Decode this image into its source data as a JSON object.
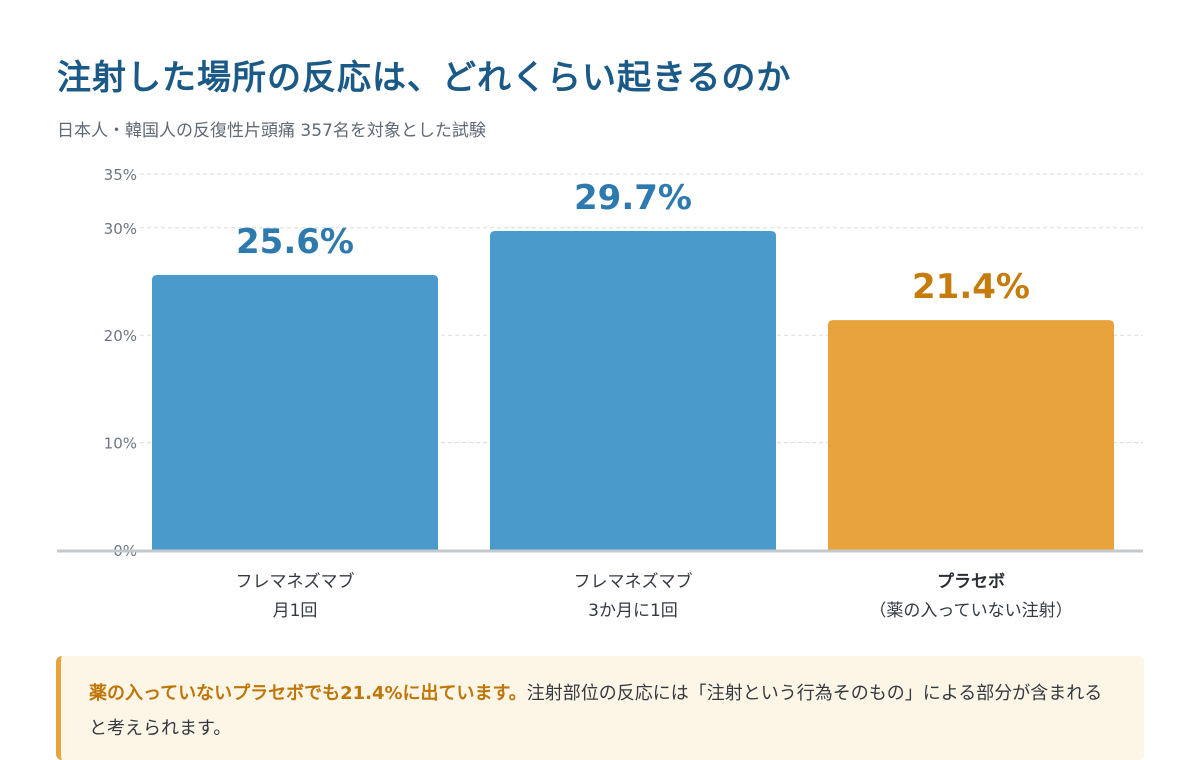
{
  "header": {
    "title": "注射した場所の反応は、どれくらい起きるのか",
    "subtitle": "日本人・韓国人の反復性片頭痛 357名を対象とした試験"
  },
  "colors": {
    "title": "#1b5a86",
    "drug_bar": "#4a9bcb",
    "drug_label": "#2e79ad",
    "placebo_bar": "#e9a33c",
    "placebo_label": "#c57c0c",
    "callout_bg": "#fdf6e7",
    "callout_border": "#e9a33c"
  },
  "chart_data": {
    "type": "bar",
    "ylim": [
      0,
      35
    ],
    "yticks": [
      0,
      10,
      20,
      30,
      35
    ],
    "ytick_labels": [
      "0%",
      "10%",
      "20%",
      "30%",
      "35%"
    ],
    "grid": true,
    "categories": [
      {
        "line1": "フレマネズマブ",
        "line2": "月1回",
        "emphasis": false
      },
      {
        "line1": "フレマネズマブ",
        "line2": "3か月に1回",
        "emphasis": false
      },
      {
        "line1": "プラセボ",
        "line2": "（薬の入っていない注射）",
        "emphasis": true
      }
    ],
    "values": [
      25.6,
      29.7,
      21.4
    ],
    "value_labels": [
      "25.6%",
      "29.7%",
      "21.4%"
    ],
    "bar_colors": [
      "#4a9bcb",
      "#4a9bcb",
      "#e9a33c"
    ],
    "label_colors": [
      "#2e79ad",
      "#2e79ad",
      "#c57c0c"
    ]
  },
  "callout": {
    "highlight": "薬の入っていないプラセボでも21.4%に出ています。",
    "text": "注射部位の反応には「注射という行為そのもの」による部分が含まれると考えられます。"
  }
}
